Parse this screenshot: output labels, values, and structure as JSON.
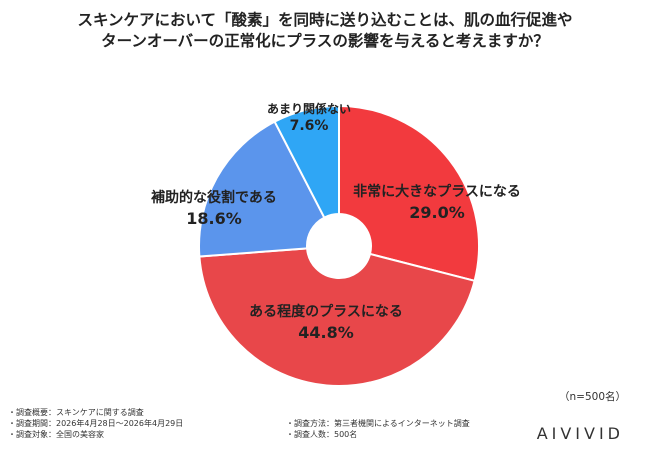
{
  "title_lines": [
    "スキンケアにおいて「酸素」を同時に送り込むことは、肌の血行促進や",
    "ターンオーバーの正常化にプラスの影響を与えると考えますか？"
  ],
  "n_note": "（n=500名）",
  "footer": {
    "left": [
      "・調査概要：スキンケアに関する調査",
      "・調査期間：2026年4月28日〜2026年4月29日",
      "・調査対象：全国の美容家"
    ],
    "right": [
      "・調査方法：第三者機関によるインターネット調査",
      "・調査人数：500名"
    ]
  },
  "brand": "AIVIVID",
  "chart_data": {
    "type": "pie",
    "title": "スキンケアにおいて「酸素」を同時に送り込むことは、肌の血行促進やターンオーバーの正常化にプラスの影響を与えると考えますか？",
    "donut": true,
    "categories": [
      "非常に大きなプラスになる",
      "ある程度のプラスになる",
      "補助的な役割である",
      "あまり関係ない"
    ],
    "values": [
      29.0,
      44.8,
      18.6,
      7.6
    ],
    "value_labels": [
      "29.0%",
      "44.8%",
      "18.6%",
      "7.6%"
    ],
    "colors": [
      "#f23a3e",
      "#e8474a",
      "#5b95ec",
      "#2fa6f5"
    ],
    "start": "12 o'clock",
    "direction": "clockwise"
  }
}
